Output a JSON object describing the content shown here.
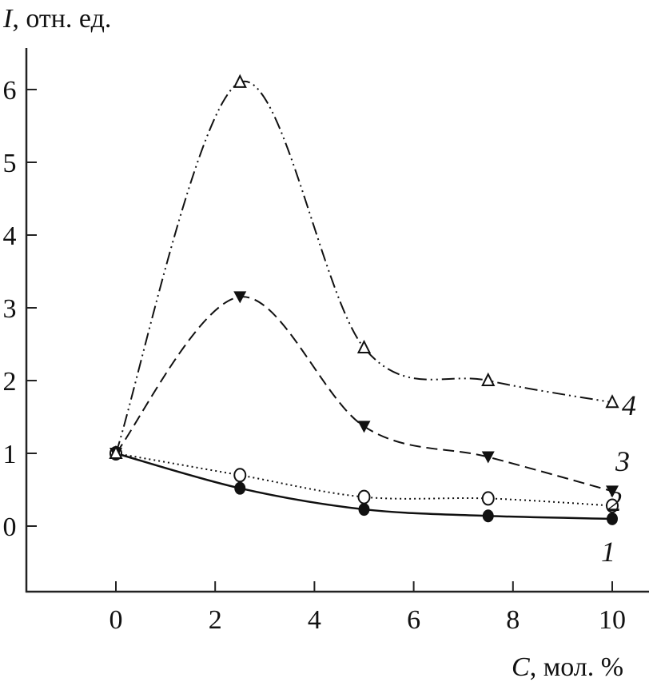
{
  "chart_data": {
    "type": "line",
    "title": "",
    "ylabel_var": "I",
    "ylabel_unit": ", отн. ед.",
    "xlabel_var": "C",
    "xlabel_unit": ", мол. %",
    "xlim": [
      -1.8,
      10.7
    ],
    "ylim": [
      -0.9,
      6.6
    ],
    "xticks": [
      0,
      2,
      4,
      6,
      8,
      10
    ],
    "yticks": [
      0,
      1,
      2,
      3,
      4,
      5,
      6
    ],
    "grid": false,
    "x": [
      0,
      2.5,
      5,
      7.5,
      10
    ],
    "series": [
      {
        "name": "1",
        "marker": "filled-circle",
        "line": "solid",
        "values": [
          1.0,
          0.52,
          0.23,
          0.14,
          0.1
        ]
      },
      {
        "name": "2",
        "marker": "open-circle",
        "line": "dotted",
        "values": [
          1.0,
          0.7,
          0.4,
          0.38,
          0.28
        ]
      },
      {
        "name": "3",
        "marker": "filled-down-triangle",
        "line": "dashed",
        "values": [
          1.0,
          3.15,
          1.37,
          0.95,
          0.48
        ]
      },
      {
        "name": "4",
        "marker": "open-triangle",
        "line": "dash-dot-dot",
        "values": [
          1.0,
          6.1,
          2.45,
          2.0,
          1.7
        ]
      }
    ]
  }
}
